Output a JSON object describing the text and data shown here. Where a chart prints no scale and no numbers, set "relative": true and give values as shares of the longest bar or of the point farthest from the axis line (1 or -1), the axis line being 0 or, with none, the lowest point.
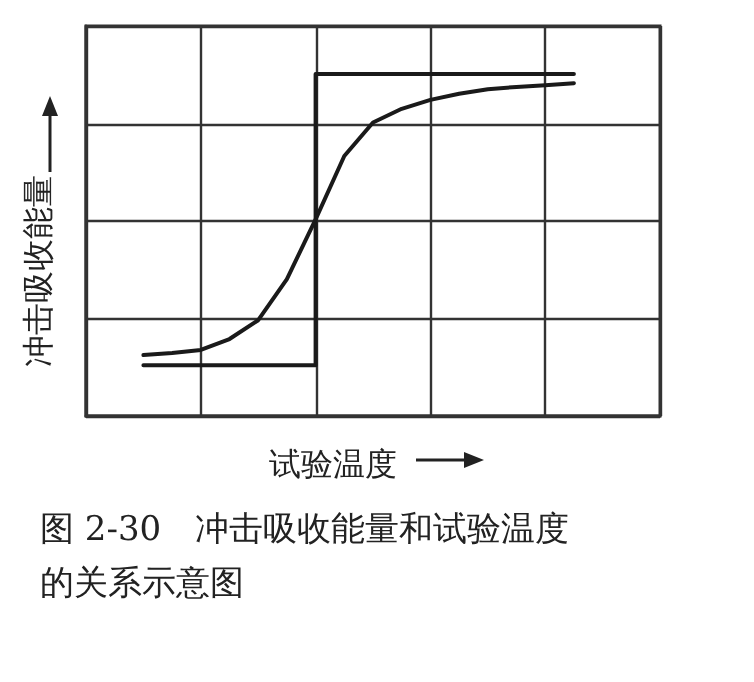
{
  "chart_data": {
    "type": "line",
    "relative": true,
    "title": "图 2-30　冲击吸收能量和试验温度的关系示意图",
    "xlabel": "试验温度",
    "ylabel": "冲击吸收能量",
    "categories": [
      null,
      null,
      null,
      null,
      null,
      null,
      null,
      null,
      null,
      null,
      null,
      null,
      null,
      null,
      null,
      null,
      null,
      null,
      null,
      null,
      null
    ],
    "grid": true,
    "marker": "none",
    "line_style": "solid",
    "series": [
      {
        "type": "step",
        "color": "#1a1a1a",
        "values": [
          null,
          null,
          0.148,
          0.148,
          0.148,
          0.148,
          0.148,
          0.148,
          1,
          1,
          1,
          1,
          1,
          1,
          1,
          1,
          1,
          1,
          null,
          null,
          null
        ]
      },
      {
        "color": "#1a1a1a",
        "values": [
          null,
          null,
          0.178,
          0.184,
          0.193,
          0.225,
          0.28,
          0.4,
          0.575,
          0.76,
          0.858,
          0.898,
          0.924,
          0.942,
          0.955,
          0.962,
          0.967,
          0.973,
          null,
          null,
          null
        ]
      }
    ]
  }
}
